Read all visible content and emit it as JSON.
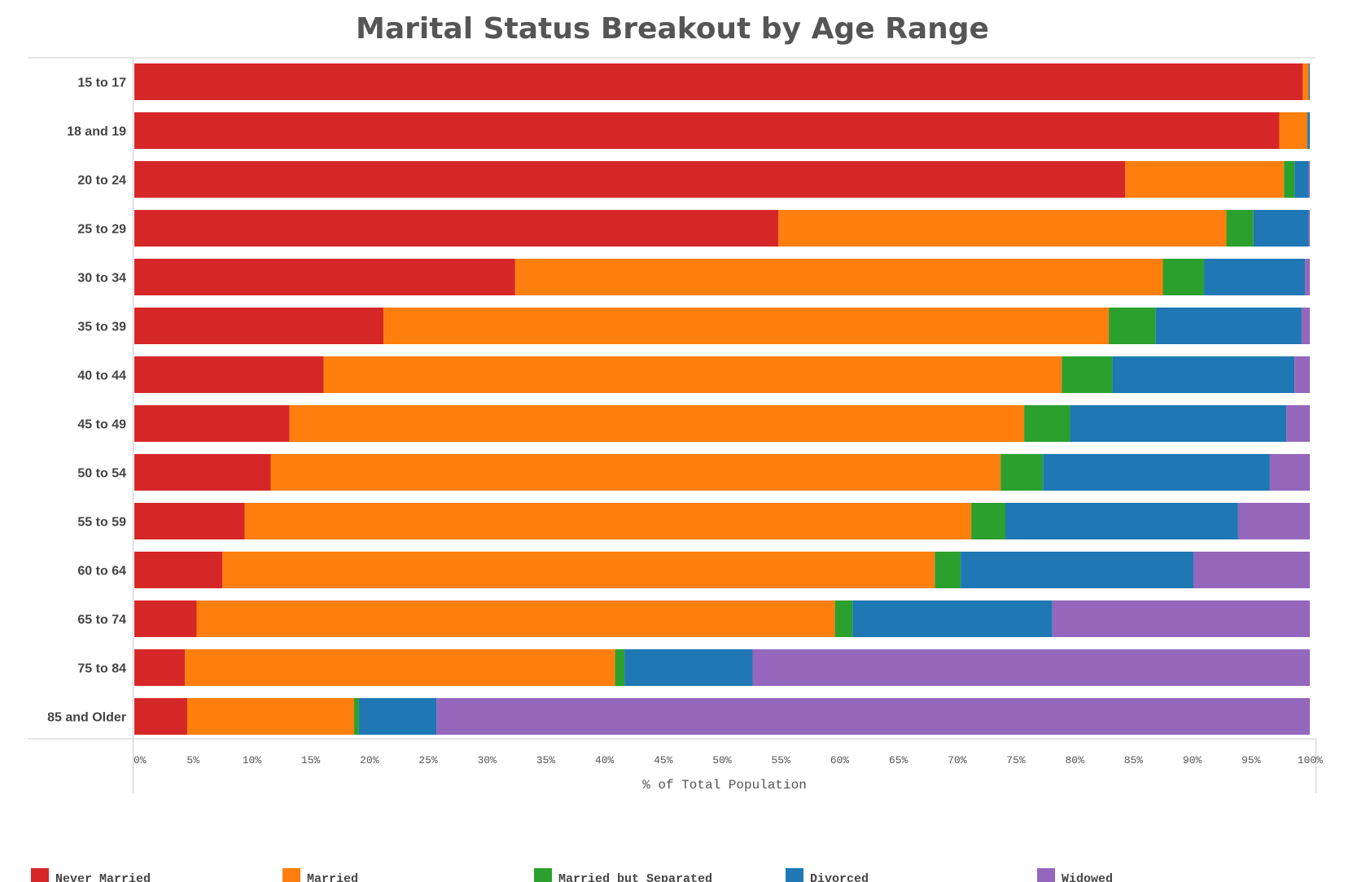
{
  "chart_data": {
    "type": "bar",
    "orientation": "horizontal",
    "stacked": "percent",
    "title": "Marital Status Breakout by Age Range",
    "xlabel": "% of Total Population",
    "ylabel": "",
    "xlim": [
      0,
      100
    ],
    "xticks": [
      "0%",
      "5%",
      "10%",
      "15%",
      "20%",
      "25%",
      "30%",
      "35%",
      "40%",
      "45%",
      "50%",
      "55%",
      "60%",
      "65%",
      "70%",
      "75%",
      "80%",
      "85%",
      "90%",
      "95%",
      "100%"
    ],
    "categories": [
      "15 to 17",
      "18 and 19",
      "20 to 24",
      "25 to 29",
      "30 to 34",
      "35 to 39",
      "40 to 44",
      "45 to 49",
      "50 to 54",
      "55 to 59",
      "60 to 64",
      "65 to 74",
      "75 to 84",
      "85 and Older"
    ],
    "series": [
      {
        "name": "Never Married",
        "color": "#d62728",
        "values": [
          99.4,
          97.4,
          84.3,
          54.8,
          32.4,
          21.2,
          16.1,
          13.2,
          11.6,
          9.4,
          7.5,
          5.3,
          4.3,
          4.5
        ]
      },
      {
        "name": "Married",
        "color": "#ff7f0e",
        "values": [
          0.5,
          2.4,
          13.5,
          38.1,
          55.1,
          61.7,
          62.8,
          62.5,
          62.1,
          61.8,
          60.6,
          54.3,
          36.6,
          14.2
        ]
      },
      {
        "name": "Married but Separated",
        "color": "#2ca02c",
        "values": [
          0.0,
          0.0,
          0.9,
          2.3,
          3.5,
          4.0,
          4.3,
          3.9,
          3.6,
          2.9,
          2.2,
          1.5,
          0.8,
          0.4
        ]
      },
      {
        "name": "Divorced",
        "color": "#1f77b4",
        "values": [
          0.1,
          0.2,
          1.2,
          4.7,
          8.6,
          12.4,
          15.5,
          18.4,
          19.3,
          19.8,
          19.8,
          17.0,
          10.9,
          6.6
        ]
      },
      {
        "name": "Widowed",
        "color": "#9467bd",
        "values": [
          0.0,
          0.0,
          0.1,
          0.1,
          0.4,
          0.7,
          1.3,
          2.0,
          3.4,
          6.1,
          9.9,
          21.9,
          47.4,
          74.3
        ]
      }
    ],
    "legend_position": "bottom",
    "grid": false
  }
}
